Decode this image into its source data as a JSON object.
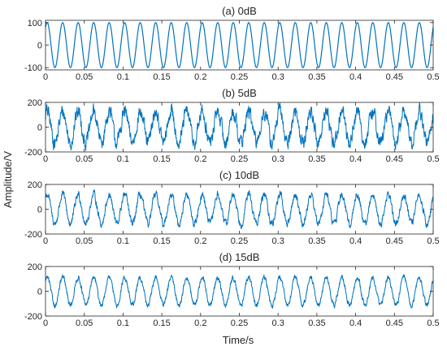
{
  "figure": {
    "ylabel": "Amplitude/V",
    "xlabel": "Time/s"
  },
  "style": {
    "line_color": "#0072BD",
    "axis_color": "#262626"
  },
  "chart_data": [
    {
      "type": "line",
      "title": "(a) 0dB",
      "xlim": [
        0,
        0.5
      ],
      "ylim": [
        -110,
        110
      ],
      "x_ticks": [
        0,
        0.05,
        0.1,
        0.15,
        0.2,
        0.25,
        0.3,
        0.35,
        0.4,
        0.45,
        0.5
      ],
      "x_tick_labels": [
        "0",
        "0.05",
        "0.1",
        "0.15",
        "0.2",
        "0.25",
        "0.3",
        "0.35",
        "0.4",
        "0.45",
        "0.5"
      ],
      "y_ticks": [
        100,
        0,
        -100
      ],
      "y_tick_labels": [
        "100",
        "0",
        "-100"
      ],
      "signal": {
        "frequency_hz": 50,
        "amplitude_v": 100,
        "noise": "none"
      }
    },
    {
      "type": "line",
      "title": "(b) 5dB",
      "xlim": [
        0,
        0.5
      ],
      "ylim": [
        -200,
        200
      ],
      "x_ticks": [
        0,
        0.05,
        0.1,
        0.15,
        0.2,
        0.25,
        0.3,
        0.35,
        0.4,
        0.45,
        0.5
      ],
      "x_tick_labels": [
        "0",
        "0.05",
        "0.1",
        "0.15",
        "0.2",
        "0.25",
        "0.3",
        "0.35",
        "0.4",
        "0.45",
        "0.5"
      ],
      "y_ticks": [
        200,
        0,
        -200
      ],
      "y_tick_labels": [
        "200",
        "0",
        "-200"
      ],
      "signal": {
        "frequency_hz": 50,
        "amplitude_v": 100,
        "noise": "SNR 5 dB"
      }
    },
    {
      "type": "line",
      "title": "(c) 10dB",
      "xlim": [
        0,
        0.5
      ],
      "ylim": [
        -200,
        200
      ],
      "x_ticks": [
        0,
        0.05,
        0.1,
        0.15,
        0.2,
        0.25,
        0.3,
        0.35,
        0.4,
        0.45,
        0.5
      ],
      "x_tick_labels": [
        "0",
        "0.05",
        "0.1",
        "0.15",
        "0.2",
        "0.25",
        "0.3",
        "0.35",
        "0.4",
        "0.45",
        "0.5"
      ],
      "y_ticks": [
        200,
        0,
        -200
      ],
      "y_tick_labels": [
        "200",
        "0",
        "-200"
      ],
      "signal": {
        "frequency_hz": 50,
        "amplitude_v": 100,
        "noise": "SNR 10 dB"
      }
    },
    {
      "type": "line",
      "title": "(d) 15dB",
      "xlim": [
        0,
        0.5
      ],
      "ylim": [
        -200,
        200
      ],
      "x_ticks": [
        0,
        0.05,
        0.1,
        0.15,
        0.2,
        0.25,
        0.3,
        0.35,
        0.4,
        0.45,
        0.5
      ],
      "x_tick_labels": [
        "0",
        "0.05",
        "0.1",
        "0.15",
        "0.2",
        "0.25",
        "0.3",
        "0.35",
        "0.4",
        "0.45",
        "0.5"
      ],
      "y_ticks": [
        200,
        0,
        -200
      ],
      "y_tick_labels": [
        "200",
        "0",
        "-200"
      ],
      "signal": {
        "frequency_hz": 50,
        "amplitude_v": 100,
        "noise": "SNR 15 dB"
      }
    }
  ]
}
